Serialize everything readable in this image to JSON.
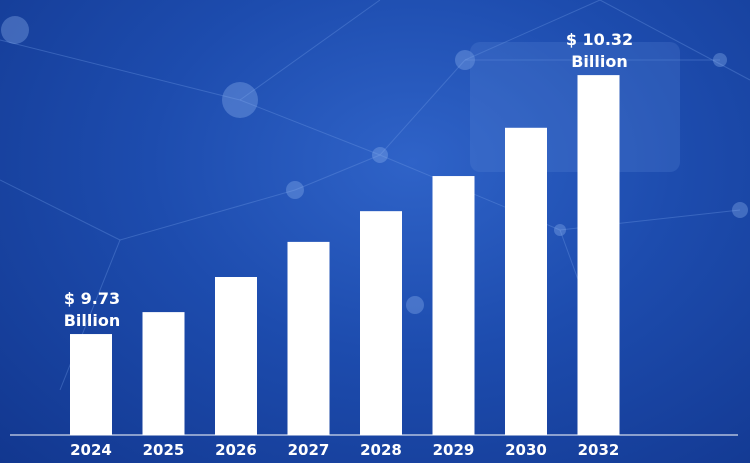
{
  "chart_data": {
    "type": "bar",
    "categories": [
      "2024",
      "2025",
      "2026",
      "2027",
      "2028",
      "2029",
      "2030",
      "2032"
    ],
    "values": [
      9.73,
      9.78,
      9.86,
      9.94,
      10.01,
      10.09,
      10.2,
      10.32
    ],
    "ylim": [
      9.5,
      10.4
    ],
    "title": "",
    "xlabel": "",
    "ylabel": "",
    "grid": false,
    "bar_color": "#ffffff",
    "background_color": "#1d4cae",
    "annotations": [
      {
        "category": "2024",
        "line1": "$ 9.73",
        "line2": "Billion"
      },
      {
        "category": "2032",
        "line1": "$ 10.32",
        "line2": "Billion"
      }
    ]
  }
}
